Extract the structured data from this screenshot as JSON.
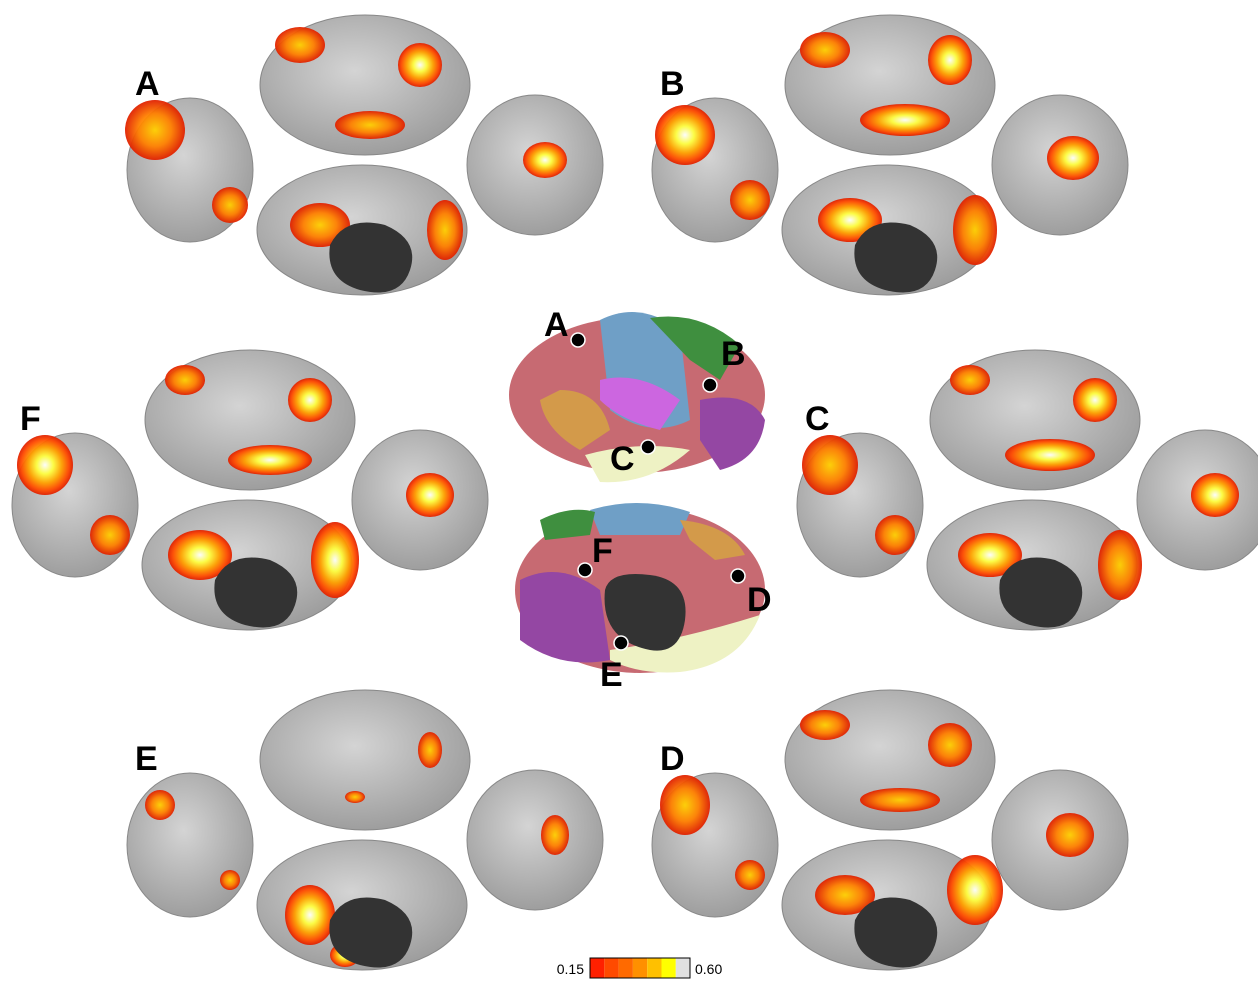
{
  "panels": [
    {
      "label": "A"
    },
    {
      "label": "B"
    },
    {
      "label": "F"
    },
    {
      "label": "C"
    },
    {
      "label": "E"
    },
    {
      "label": "D"
    }
  ],
  "center_labels": [
    "A",
    "B",
    "C",
    "F",
    "D",
    "E"
  ],
  "colorbar": {
    "min_label": "0.15",
    "max_label": "0.60"
  }
}
